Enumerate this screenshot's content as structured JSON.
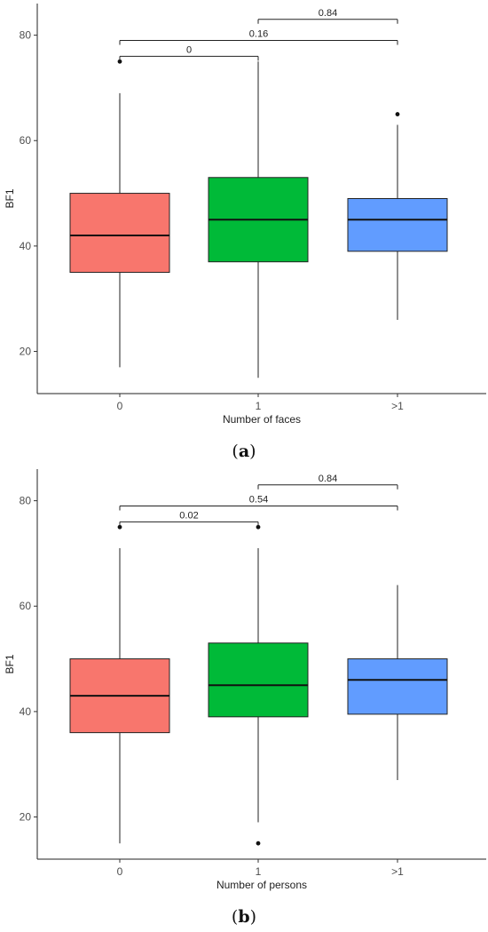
{
  "chart_data": [
    {
      "type": "boxplot",
      "panel_caption": "(a)",
      "caption_letter": "a",
      "xlabel": "Number of faces",
      "ylabel": "BF1",
      "categories": [
        "0",
        "1",
        ">1"
      ],
      "ylim": [
        12,
        86
      ],
      "yticks": [
        20,
        40,
        60,
        80
      ],
      "grid": false,
      "boxes": [
        {
          "category": "0",
          "color": "#F8766D",
          "whisker_low": 17,
          "q1": 35,
          "median": 42,
          "q3": 50,
          "whisker_high": 69,
          "outliers": [
            75
          ]
        },
        {
          "category": "1",
          "color": "#00BA38",
          "whisker_low": 15,
          "q1": 37,
          "median": 45,
          "q3": 53,
          "whisker_high": 75,
          "outliers": []
        },
        {
          "category": ">1",
          "color": "#619CFF",
          "whisker_low": 26,
          "q1": 39,
          "median": 45,
          "q3": 49,
          "whisker_high": 63,
          "outliers": [
            65
          ]
        }
      ],
      "comparisons": [
        {
          "from": 0,
          "to": 1,
          "label": "0",
          "y": 76
        },
        {
          "from": 0,
          "to": 2,
          "label": "0.16",
          "y": 79
        },
        {
          "from": 1,
          "to": 2,
          "label": "0.84",
          "y": 83
        }
      ]
    },
    {
      "type": "boxplot",
      "panel_caption": "(b)",
      "caption_letter": "b",
      "xlabel": "Number of persons",
      "ylabel": "BF1",
      "categories": [
        "0",
        "1",
        ">1"
      ],
      "ylim": [
        12,
        86
      ],
      "yticks": [
        20,
        40,
        60,
        80
      ],
      "grid": false,
      "boxes": [
        {
          "category": "0",
          "color": "#F8766D",
          "whisker_low": 15,
          "q1": 36,
          "median": 43,
          "q3": 50,
          "whisker_high": 71,
          "outliers": [
            75
          ]
        },
        {
          "category": "1",
          "color": "#00BA38",
          "whisker_low": 19,
          "q1": 39,
          "median": 45,
          "q3": 53,
          "whisker_high": 71,
          "outliers": [
            75,
            15
          ]
        },
        {
          "category": ">1",
          "color": "#619CFF",
          "whisker_low": 27,
          "q1": 39.5,
          "median": 46,
          "q3": 50,
          "whisker_high": 64,
          "outliers": []
        }
      ],
      "comparisons": [
        {
          "from": 0,
          "to": 1,
          "label": "0.02",
          "y": 76
        },
        {
          "from": 0,
          "to": 2,
          "label": "0.54",
          "y": 79
        },
        {
          "from": 1,
          "to": 2,
          "label": "0.84",
          "y": 83
        }
      ]
    }
  ]
}
